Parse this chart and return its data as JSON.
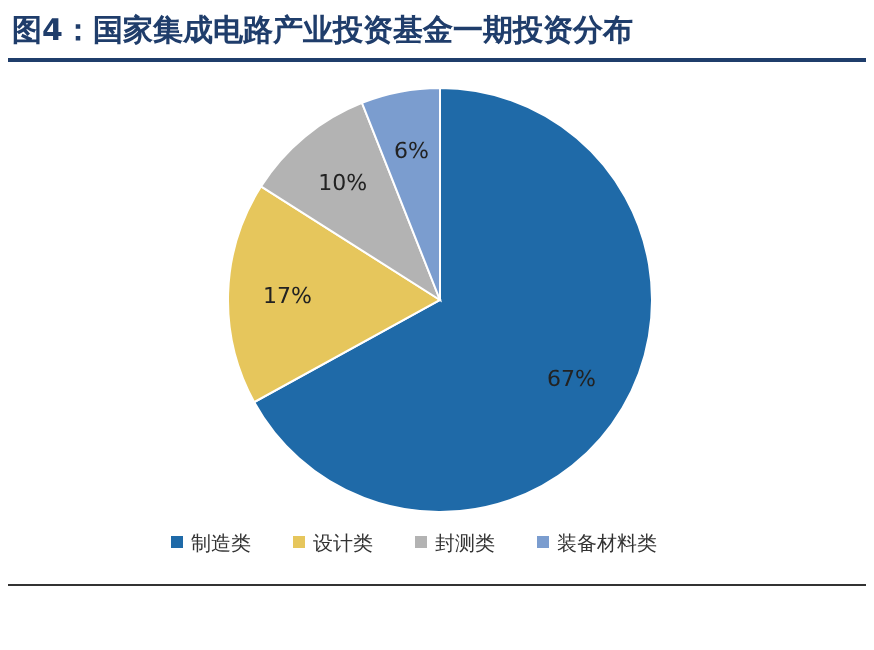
{
  "chart_data": {
    "type": "pie",
    "title": "图4：国家集成电路产业投资基金一期投资分布",
    "categories": [
      "制造类",
      "设计类",
      "封测类",
      "装备材料类"
    ],
    "values": [
      67,
      17,
      10,
      6
    ],
    "colors": [
      "#1f6aa8",
      "#e6c65c",
      "#b3b3b3",
      "#7b9dcf"
    ],
    "value_labels": [
      "67%",
      "17%",
      "10%",
      "6%"
    ],
    "legend": "bottom"
  }
}
